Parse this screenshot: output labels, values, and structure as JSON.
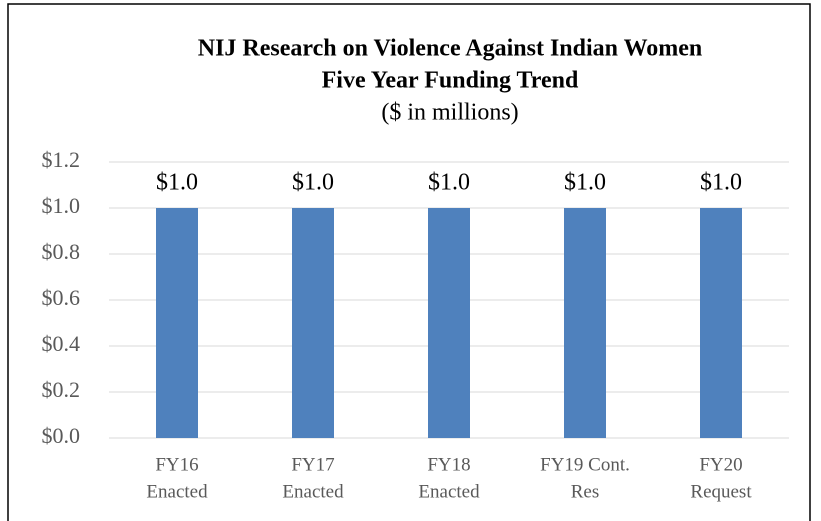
{
  "chart_data": {
    "type": "bar",
    "title": [
      "NIJ Research on Violence Against Indian Women",
      "Five Year Funding Trend"
    ],
    "subtitle": "($ in millions)",
    "categories": [
      [
        "FY16",
        "Enacted"
      ],
      [
        "FY17",
        "Enacted"
      ],
      [
        "FY18",
        "Enacted"
      ],
      [
        "FY19 Cont.",
        "Res"
      ],
      [
        "FY20",
        "Request"
      ]
    ],
    "values": [
      1.0,
      1.0,
      1.0,
      1.0,
      1.0
    ],
    "value_labels": [
      "$1.0",
      "$1.0",
      "$1.0",
      "$1.0",
      "$1.0"
    ],
    "color": "#4f81bd",
    "ylim": [
      0,
      1.2
    ],
    "yticks": [
      {
        "value": 0,
        "label": "$0.0"
      },
      {
        "value": 0.2,
        "label": "$0.2"
      },
      {
        "value": 0.4,
        "label": "$0.4"
      },
      {
        "value": 0.6,
        "label": "$0.6"
      },
      {
        "value": 0.8,
        "label": "$0.8"
      },
      {
        "value": 1.0,
        "label": "$1.0"
      },
      {
        "value": 1.2,
        "label": "$1.2"
      }
    ],
    "grid": true
  }
}
